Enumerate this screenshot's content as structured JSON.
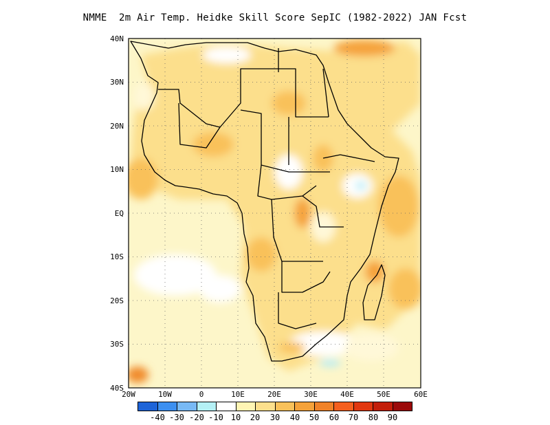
{
  "title": "NMME  2m Air Temp. Heidke Skill Score SepIC (1982-2022) JAN Fcst",
  "map": {
    "lat_labels": [
      "40N",
      "30N",
      "20N",
      "10N",
      "EQ",
      "10S",
      "20S",
      "30S",
      "40S"
    ],
    "lon_labels": [
      "20W",
      "10W",
      "0",
      "10E",
      "20E",
      "30E",
      "40E",
      "50E",
      "60E"
    ],
    "lat_range": [
      -40,
      40
    ],
    "lon_range": [
      -20,
      60
    ],
    "grid": "dotted",
    "fill_colors": {
      "ocean_light": "#fdf6c9",
      "land_base": "#fcdf8c",
      "pale": "#ffffff",
      "mid": "#f9c15a",
      "high": "#f5a23a",
      "higher": "#f08a2a",
      "cool": "#b3ecf7"
    }
  },
  "colorbar": {
    "colors": [
      "#1e64d8",
      "#3c8ff0",
      "#78b9f5",
      "#b4f0f5",
      "#ffffff",
      "#fff5b4",
      "#fcdf8c",
      "#f9c15a",
      "#f5a23a",
      "#f08228",
      "#f55f1e",
      "#e1370f",
      "#c31e0a",
      "#9b0a0a"
    ],
    "labels": [
      "-40",
      "-30",
      "-20",
      "-10",
      "10",
      "20",
      "30",
      "40",
      "50",
      "60",
      "70",
      "80",
      "90"
    ]
  }
}
